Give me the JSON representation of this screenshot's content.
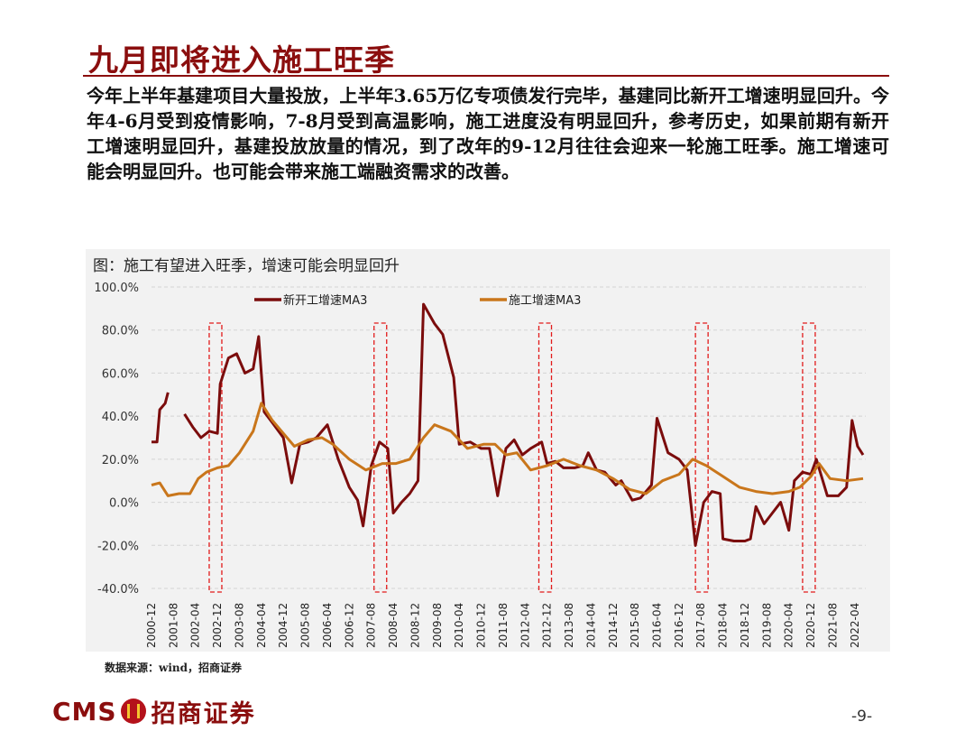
{
  "page": {
    "title": "九月即将进入施工旺季",
    "body": "今年上半年基建项目大量投放，上半年3.65万亿专项债发行完毕，基建同比新开工增速明显回升。今年4-6月受到疫情影响，7-8月受到高温影响，施工进度没有明显回升，参考历史，如果前期有新开工增速明显回升，基建投放放量的情况，到了改年的9-12月往往会迎来一轮施工旺季。施工增速可能会明显回升。也可能会带来施工端融资需求的改善。",
    "source": "数据来源：wind，招商证券",
    "page_number": "-9-",
    "logo_latin": "CMS",
    "logo_chinese": "招商证券",
    "colors": {
      "title": "#8b0e0e",
      "series1": "#7b0c0c",
      "series2": "#c9761b",
      "highlight": "#e21b1b"
    }
  },
  "chart_data": {
    "type": "line",
    "title": "图：施工有望进入旺季，增速可能会明显回升",
    "ylim": [
      -40,
      100
    ],
    "yticks": [
      "100.0%",
      "80.0%",
      "60.0%",
      "40.0%",
      "20.0%",
      "0.0%",
      "-20.0%",
      "-40.0%"
    ],
    "ytick_values": [
      100,
      80,
      60,
      40,
      20,
      0,
      -20,
      -40
    ],
    "xrange": [
      "2000-12",
      "2022-08"
    ],
    "xticks": [
      "2000-12",
      "2001-08",
      "2002-04",
      "2002-12",
      "2003-08",
      "2004-04",
      "2004-12",
      "2005-08",
      "2006-04",
      "2006-12",
      "2007-08",
      "2008-04",
      "2008-12",
      "2009-08",
      "2010-04",
      "2010-12",
      "2011-08",
      "2012-04",
      "2012-12",
      "2013-08",
      "2014-04",
      "2014-12",
      "2015-08",
      "2016-04",
      "2016-12",
      "2017-08",
      "2018-04",
      "2018-12",
      "2019-08",
      "2020-04",
      "2020-12",
      "2021-08",
      "2022-04"
    ],
    "legend": [
      "新开工增速MA3",
      "施工增速MA3"
    ],
    "highlight_ranges": [
      [
        "2002-09",
        "2002-12"
      ],
      [
        "2007-09",
        "2008-01"
      ],
      [
        "2012-09",
        "2013-01"
      ],
      [
        "2017-06",
        "2017-09"
      ],
      [
        "2020-09",
        "2020-12"
      ]
    ],
    "series": [
      {
        "name": "新开工增速MA3",
        "segments": [
          [
            [
              "2000-12",
              28
            ],
            [
              "2001-02",
              28
            ],
            [
              "2001-03",
              43
            ],
            [
              "2001-05",
              46
            ],
            [
              "2001-06",
              51
            ]
          ],
          [
            [
              "2001-12",
              41
            ],
            [
              "2002-03",
              35
            ],
            [
              "2002-06",
              30
            ],
            [
              "2002-09",
              33
            ],
            [
              "2002-12",
              32
            ],
            [
              "2003-01",
              55
            ],
            [
              "2003-04",
              67
            ],
            [
              "2003-07",
              69
            ],
            [
              "2003-10",
              60
            ],
            [
              "2004-01",
              62
            ],
            [
              "2004-03",
              77
            ],
            [
              "2004-05",
              42
            ],
            [
              "2004-08",
              37
            ],
            [
              "2004-12",
              30
            ],
            [
              "2005-03",
              9
            ],
            [
              "2005-06",
              27
            ],
            [
              "2005-09",
              28
            ],
            [
              "2005-12",
              30
            ],
            [
              "2006-04",
              36
            ],
            [
              "2006-08",
              20
            ],
            [
              "2006-12",
              7
            ],
            [
              "2007-03",
              1
            ],
            [
              "2007-05",
              -11
            ],
            [
              "2007-08",
              17
            ],
            [
              "2007-11",
              28
            ],
            [
              "2008-02",
              25
            ],
            [
              "2008-04",
              -5
            ],
            [
              "2008-07",
              0
            ],
            [
              "2008-10",
              4
            ],
            [
              "2009-01",
              10
            ],
            [
              "2009-03",
              92
            ],
            [
              "2009-07",
              83
            ],
            [
              "2009-10",
              78
            ],
            [
              "2010-02",
              58
            ],
            [
              "2010-04",
              27
            ],
            [
              "2010-08",
              28
            ],
            [
              "2010-12",
              25
            ],
            [
              "2011-03",
              25
            ],
            [
              "2011-06",
              3
            ],
            [
              "2011-09",
              25
            ],
            [
              "2011-12",
              29
            ],
            [
              "2012-03",
              22
            ],
            [
              "2012-06",
              25
            ],
            [
              "2012-10",
              28
            ],
            [
              "2012-12",
              18
            ],
            [
              "2013-03",
              19
            ],
            [
              "2013-06",
              16
            ],
            [
              "2013-10",
              16
            ],
            [
              "2014-01",
              17
            ],
            [
              "2014-03",
              23
            ],
            [
              "2014-06",
              15
            ],
            [
              "2014-09",
              14
            ],
            [
              "2015-01",
              8
            ],
            [
              "2015-03",
              10
            ],
            [
              "2015-07",
              1
            ],
            [
              "2015-10",
              2
            ],
            [
              "2016-02",
              8
            ],
            [
              "2016-04",
              39
            ],
            [
              "2016-08",
              23
            ],
            [
              "2016-12",
              20
            ],
            [
              "2017-03",
              15
            ],
            [
              "2017-06",
              -20
            ],
            [
              "2017-09",
              0
            ],
            [
              "2017-12",
              5
            ],
            [
              "2018-03",
              4
            ],
            [
              "2018-04",
              -17
            ],
            [
              "2018-08",
              -18
            ],
            [
              "2018-12",
              -18
            ],
            [
              "2019-02",
              -17
            ],
            [
              "2019-04",
              -2
            ],
            [
              "2019-07",
              -10
            ],
            [
              "2019-10",
              -5
            ],
            [
              "2020-01",
              0
            ],
            [
              "2020-04",
              -13
            ],
            [
              "2020-06",
              10
            ],
            [
              "2020-09",
              14
            ],
            [
              "2020-12",
              13
            ],
            [
              "2021-02",
              20
            ],
            [
              "2021-06",
              3
            ],
            [
              "2021-10",
              3
            ],
            [
              "2022-01",
              7
            ],
            [
              "2022-03",
              38
            ],
            [
              "2022-05",
              26
            ],
            [
              "2022-07",
              22
            ]
          ]
        ]
      },
      {
        "name": "施工增速MA3",
        "segments": [
          [
            [
              "2000-12",
              8
            ],
            [
              "2001-03",
              9
            ],
            [
              "2001-06",
              3
            ],
            [
              "2001-10",
              4
            ],
            [
              "2002-02",
              4
            ],
            [
              "2002-05",
              11
            ],
            [
              "2002-08",
              14
            ],
            [
              "2002-12",
              16
            ],
            [
              "2003-04",
              17
            ],
            [
              "2003-08",
              23
            ],
            [
              "2004-01",
              33
            ],
            [
              "2004-04",
              46
            ],
            [
              "2004-08",
              38
            ],
            [
              "2004-12",
              32
            ],
            [
              "2005-04",
              26
            ],
            [
              "2005-09",
              29
            ],
            [
              "2006-02",
              30
            ],
            [
              "2006-06",
              27
            ],
            [
              "2006-12",
              20
            ],
            [
              "2007-06",
              15
            ],
            [
              "2007-12",
              18
            ],
            [
              "2008-05",
              18
            ],
            [
              "2008-10",
              20
            ],
            [
              "2009-03",
              30
            ],
            [
              "2009-07",
              36
            ],
            [
              "2010-01",
              33
            ],
            [
              "2010-07",
              25
            ],
            [
              "2011-01",
              27
            ],
            [
              "2011-05",
              27
            ],
            [
              "2011-09",
              22
            ],
            [
              "2012-01",
              23
            ],
            [
              "2012-06",
              15
            ],
            [
              "2012-12",
              17
            ],
            [
              "2013-06",
              20
            ],
            [
              "2013-12",
              17
            ],
            [
              "2014-06",
              15
            ],
            [
              "2014-12",
              11
            ],
            [
              "2015-06",
              6
            ],
            [
              "2015-12",
              4
            ],
            [
              "2016-06",
              10
            ],
            [
              "2016-12",
              13
            ],
            [
              "2017-05",
              20
            ],
            [
              "2017-10",
              17
            ],
            [
              "2018-04",
              12
            ],
            [
              "2018-10",
              7
            ],
            [
              "2019-04",
              5
            ],
            [
              "2019-10",
              4
            ],
            [
              "2020-04",
              5
            ],
            [
              "2020-08",
              7
            ],
            [
              "2020-12",
              12
            ],
            [
              "2021-03",
              18
            ],
            [
              "2021-07",
              11
            ],
            [
              "2022-01",
              10
            ],
            [
              "2022-07",
              11
            ]
          ]
        ]
      }
    ]
  }
}
